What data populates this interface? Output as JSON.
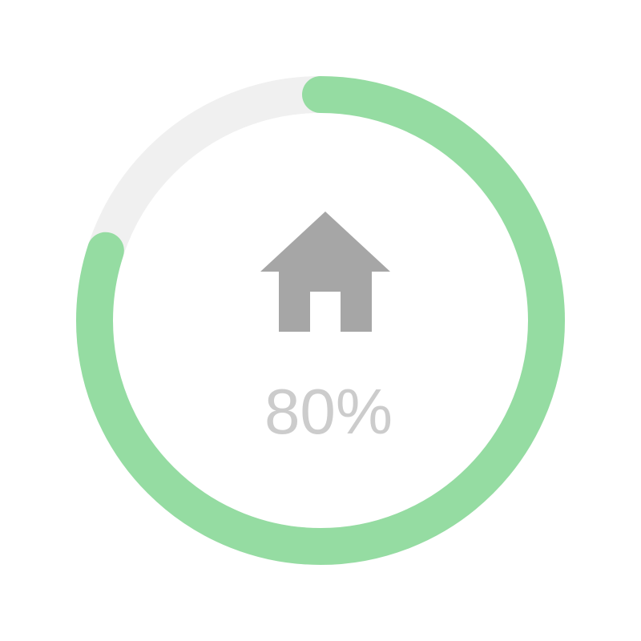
{
  "progress": {
    "value": 0.8,
    "label": "80%",
    "icon": "home-icon"
  },
  "colors": {
    "track": "#f0f0f0",
    "fill": "#95dca2",
    "icon": "#a6a6a6",
    "text": "#cccccc"
  }
}
